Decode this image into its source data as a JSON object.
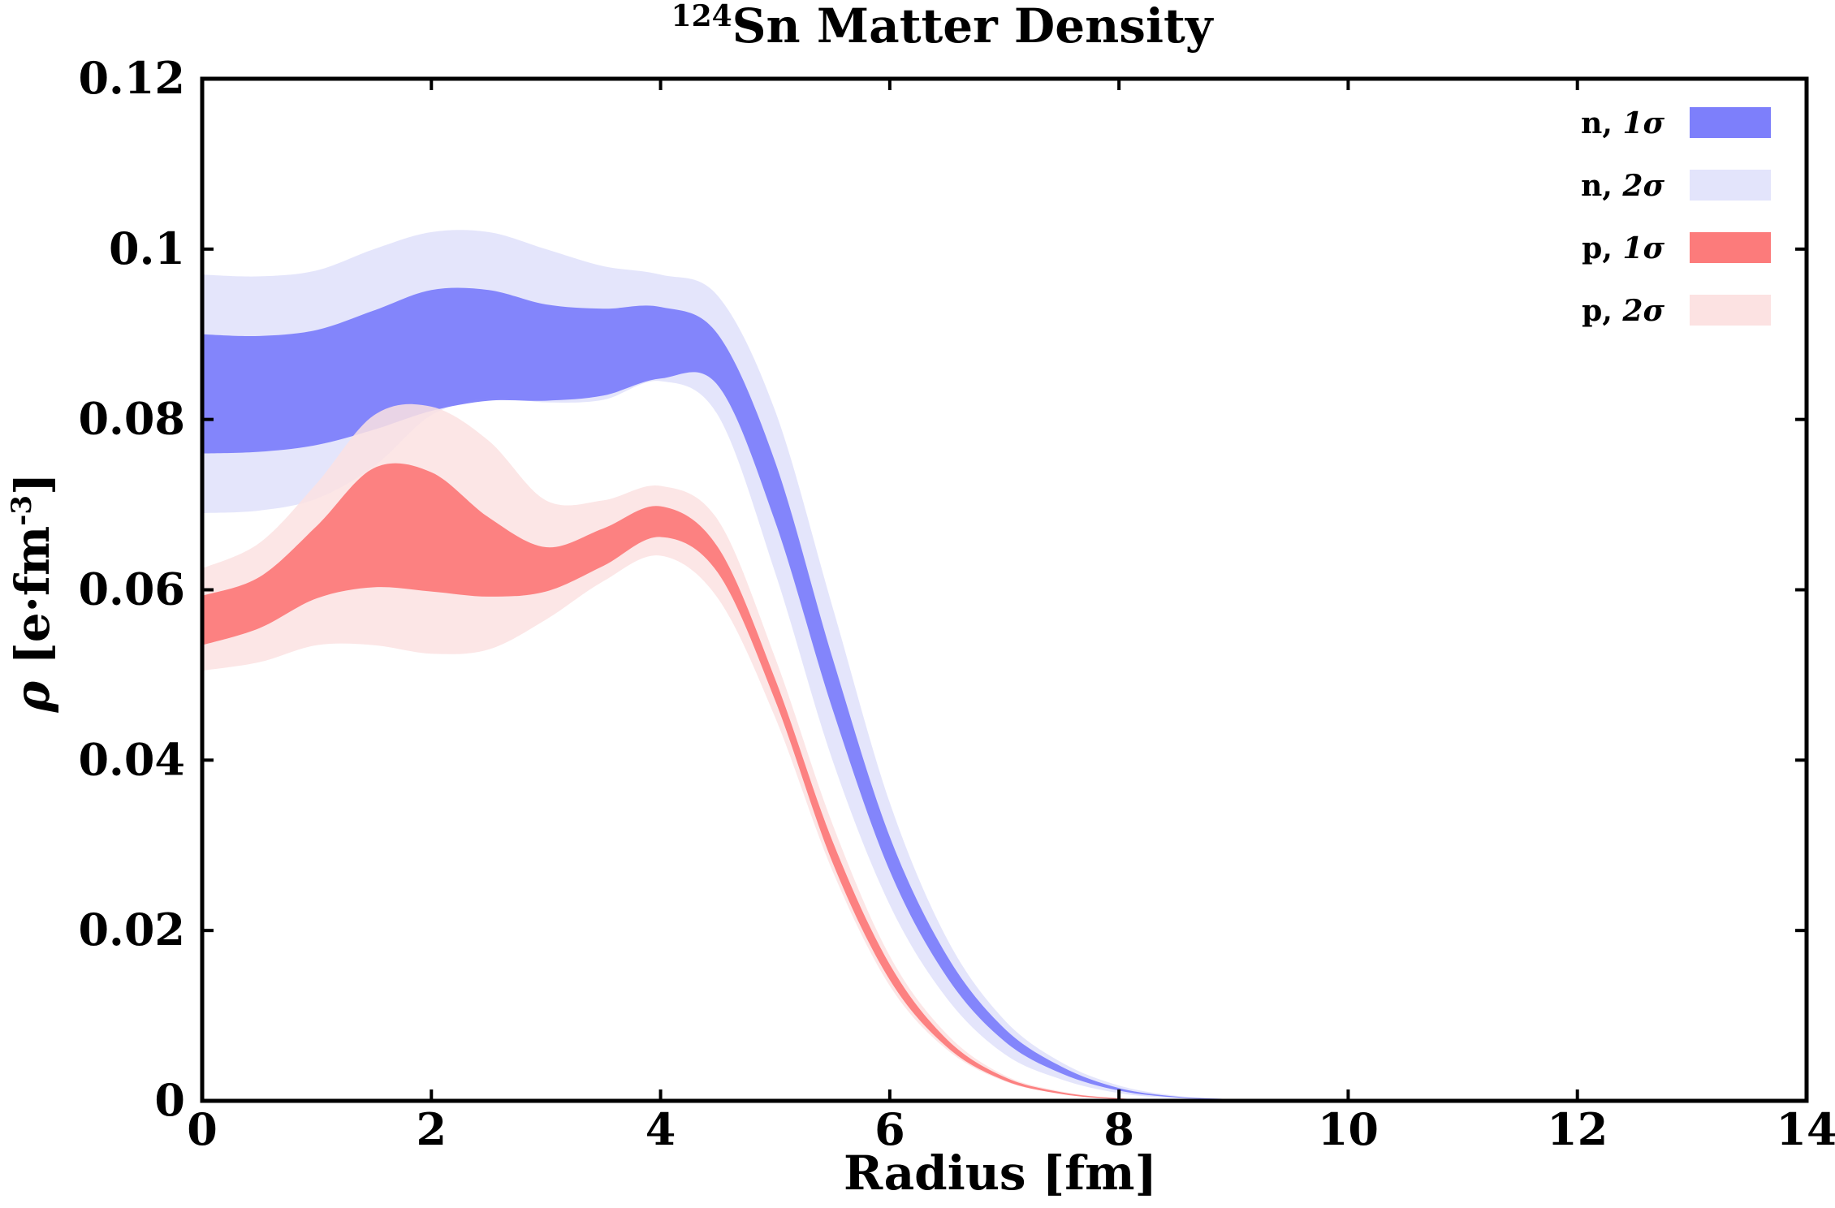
{
  "chart_data": {
    "type": "area",
    "title": {
      "superscript": "124",
      "main": "Sn Matter Density"
    },
    "xlabel": "Radius [fm]",
    "ylabel": {
      "symbol": "ρ",
      "unit": "[e·fm",
      "exponent": "-3",
      "close": "]"
    },
    "xlim": [
      0,
      14
    ],
    "ylim": [
      0,
      0.12
    ],
    "x_ticks": [
      {
        "value": 0,
        "label": "0"
      },
      {
        "value": 2,
        "label": "2"
      },
      {
        "value": 4,
        "label": "4"
      },
      {
        "value": 6,
        "label": "6"
      },
      {
        "value": 8,
        "label": "8"
      },
      {
        "value": 10,
        "label": "10"
      },
      {
        "value": 12,
        "label": "12"
      },
      {
        "value": 14,
        "label": "14"
      }
    ],
    "y_ticks": [
      {
        "value": 0,
        "label": "0"
      },
      {
        "value": 0.02,
        "label": "0.02"
      },
      {
        "value": 0.04,
        "label": "0.04"
      },
      {
        "value": 0.06,
        "label": "0.06"
      },
      {
        "value": 0.08,
        "label": "0.08"
      },
      {
        "value": 0.1,
        "label": "0.1"
      },
      {
        "value": 0.12,
        "label": "0.12"
      }
    ],
    "grid": false,
    "legend_position": "top-right",
    "x": [
      0,
      0.5,
      1,
      1.5,
      2,
      2.5,
      3,
      3.5,
      4,
      4.5,
      5,
      5.5,
      6,
      6.5,
      7,
      7.5,
      8,
      8.5,
      9,
      9.5,
      10
    ],
    "series": [
      {
        "name": "n, 2σ",
        "label_prefix": "n, ",
        "label_sigma": "2σ",
        "color": "#e3e4fb",
        "lower": [
          0.069,
          0.0693,
          0.0707,
          0.0745,
          0.0805,
          0.0825,
          0.082,
          0.0823,
          0.0845,
          0.0805,
          0.062,
          0.04,
          0.023,
          0.012,
          0.0055,
          0.0025,
          0.0009,
          0.0003,
          0.0001,
          0,
          0
        ],
        "upper": [
          0.097,
          0.0968,
          0.0975,
          0.1,
          0.102,
          0.102,
          0.1,
          0.098,
          0.097,
          0.0945,
          0.081,
          0.058,
          0.035,
          0.019,
          0.0095,
          0.0045,
          0.0018,
          0.0006,
          0.0002,
          0.0001,
          0
        ]
      },
      {
        "name": "n, 1σ",
        "label_prefix": "n, ",
        "label_sigma": "1σ",
        "color": "#7d7ffb",
        "lower": [
          0.076,
          0.0762,
          0.077,
          0.0788,
          0.081,
          0.0822,
          0.0822,
          0.0828,
          0.0848,
          0.084,
          0.068,
          0.046,
          0.027,
          0.0145,
          0.007,
          0.0032,
          0.0012,
          0.0004,
          0.0001,
          0,
          0
        ],
        "upper": [
          0.09,
          0.0898,
          0.0905,
          0.0928,
          0.0952,
          0.0952,
          0.0935,
          0.093,
          0.0932,
          0.09,
          0.075,
          0.052,
          0.031,
          0.017,
          0.0085,
          0.004,
          0.0015,
          0.0005,
          0.0002,
          0,
          0
        ]
      },
      {
        "name": "p, 2σ",
        "label_prefix": "p, ",
        "label_sigma": "2σ",
        "color": "#fce2e2",
        "lower": [
          0.0505,
          0.0515,
          0.0535,
          0.0535,
          0.0525,
          0.053,
          0.0565,
          0.061,
          0.064,
          0.059,
          0.045,
          0.027,
          0.0135,
          0.006,
          0.0023,
          0.0008,
          0.0002,
          0,
          0,
          0,
          0
        ],
        "upper": [
          0.0625,
          0.0655,
          0.0725,
          0.0805,
          0.0815,
          0.0775,
          0.0705,
          0.0705,
          0.0722,
          0.0682,
          0.052,
          0.0325,
          0.017,
          0.0078,
          0.003,
          0.0011,
          0.0003,
          0.0001,
          0,
          0,
          0
        ]
      },
      {
        "name": "p, 1σ",
        "label_prefix": "p, ",
        "label_sigma": "1σ",
        "color": "#fc7b7b",
        "lower": [
          0.0535,
          0.0555,
          0.059,
          0.0603,
          0.0598,
          0.0592,
          0.0598,
          0.0628,
          0.0662,
          0.062,
          0.047,
          0.028,
          0.0142,
          0.0063,
          0.0024,
          0.0008,
          0.0002,
          0,
          0,
          0,
          0
        ],
        "upper": [
          0.0593,
          0.0615,
          0.0675,
          0.0743,
          0.0738,
          0.0685,
          0.065,
          0.0672,
          0.0698,
          0.065,
          0.0495,
          0.0305,
          0.016,
          0.0072,
          0.0028,
          0.001,
          0.0003,
          0.0001,
          0,
          0,
          0
        ]
      }
    ],
    "legend_order": [
      "n, 1σ",
      "n, 2σ",
      "p, 1σ",
      "p, 2σ"
    ]
  }
}
